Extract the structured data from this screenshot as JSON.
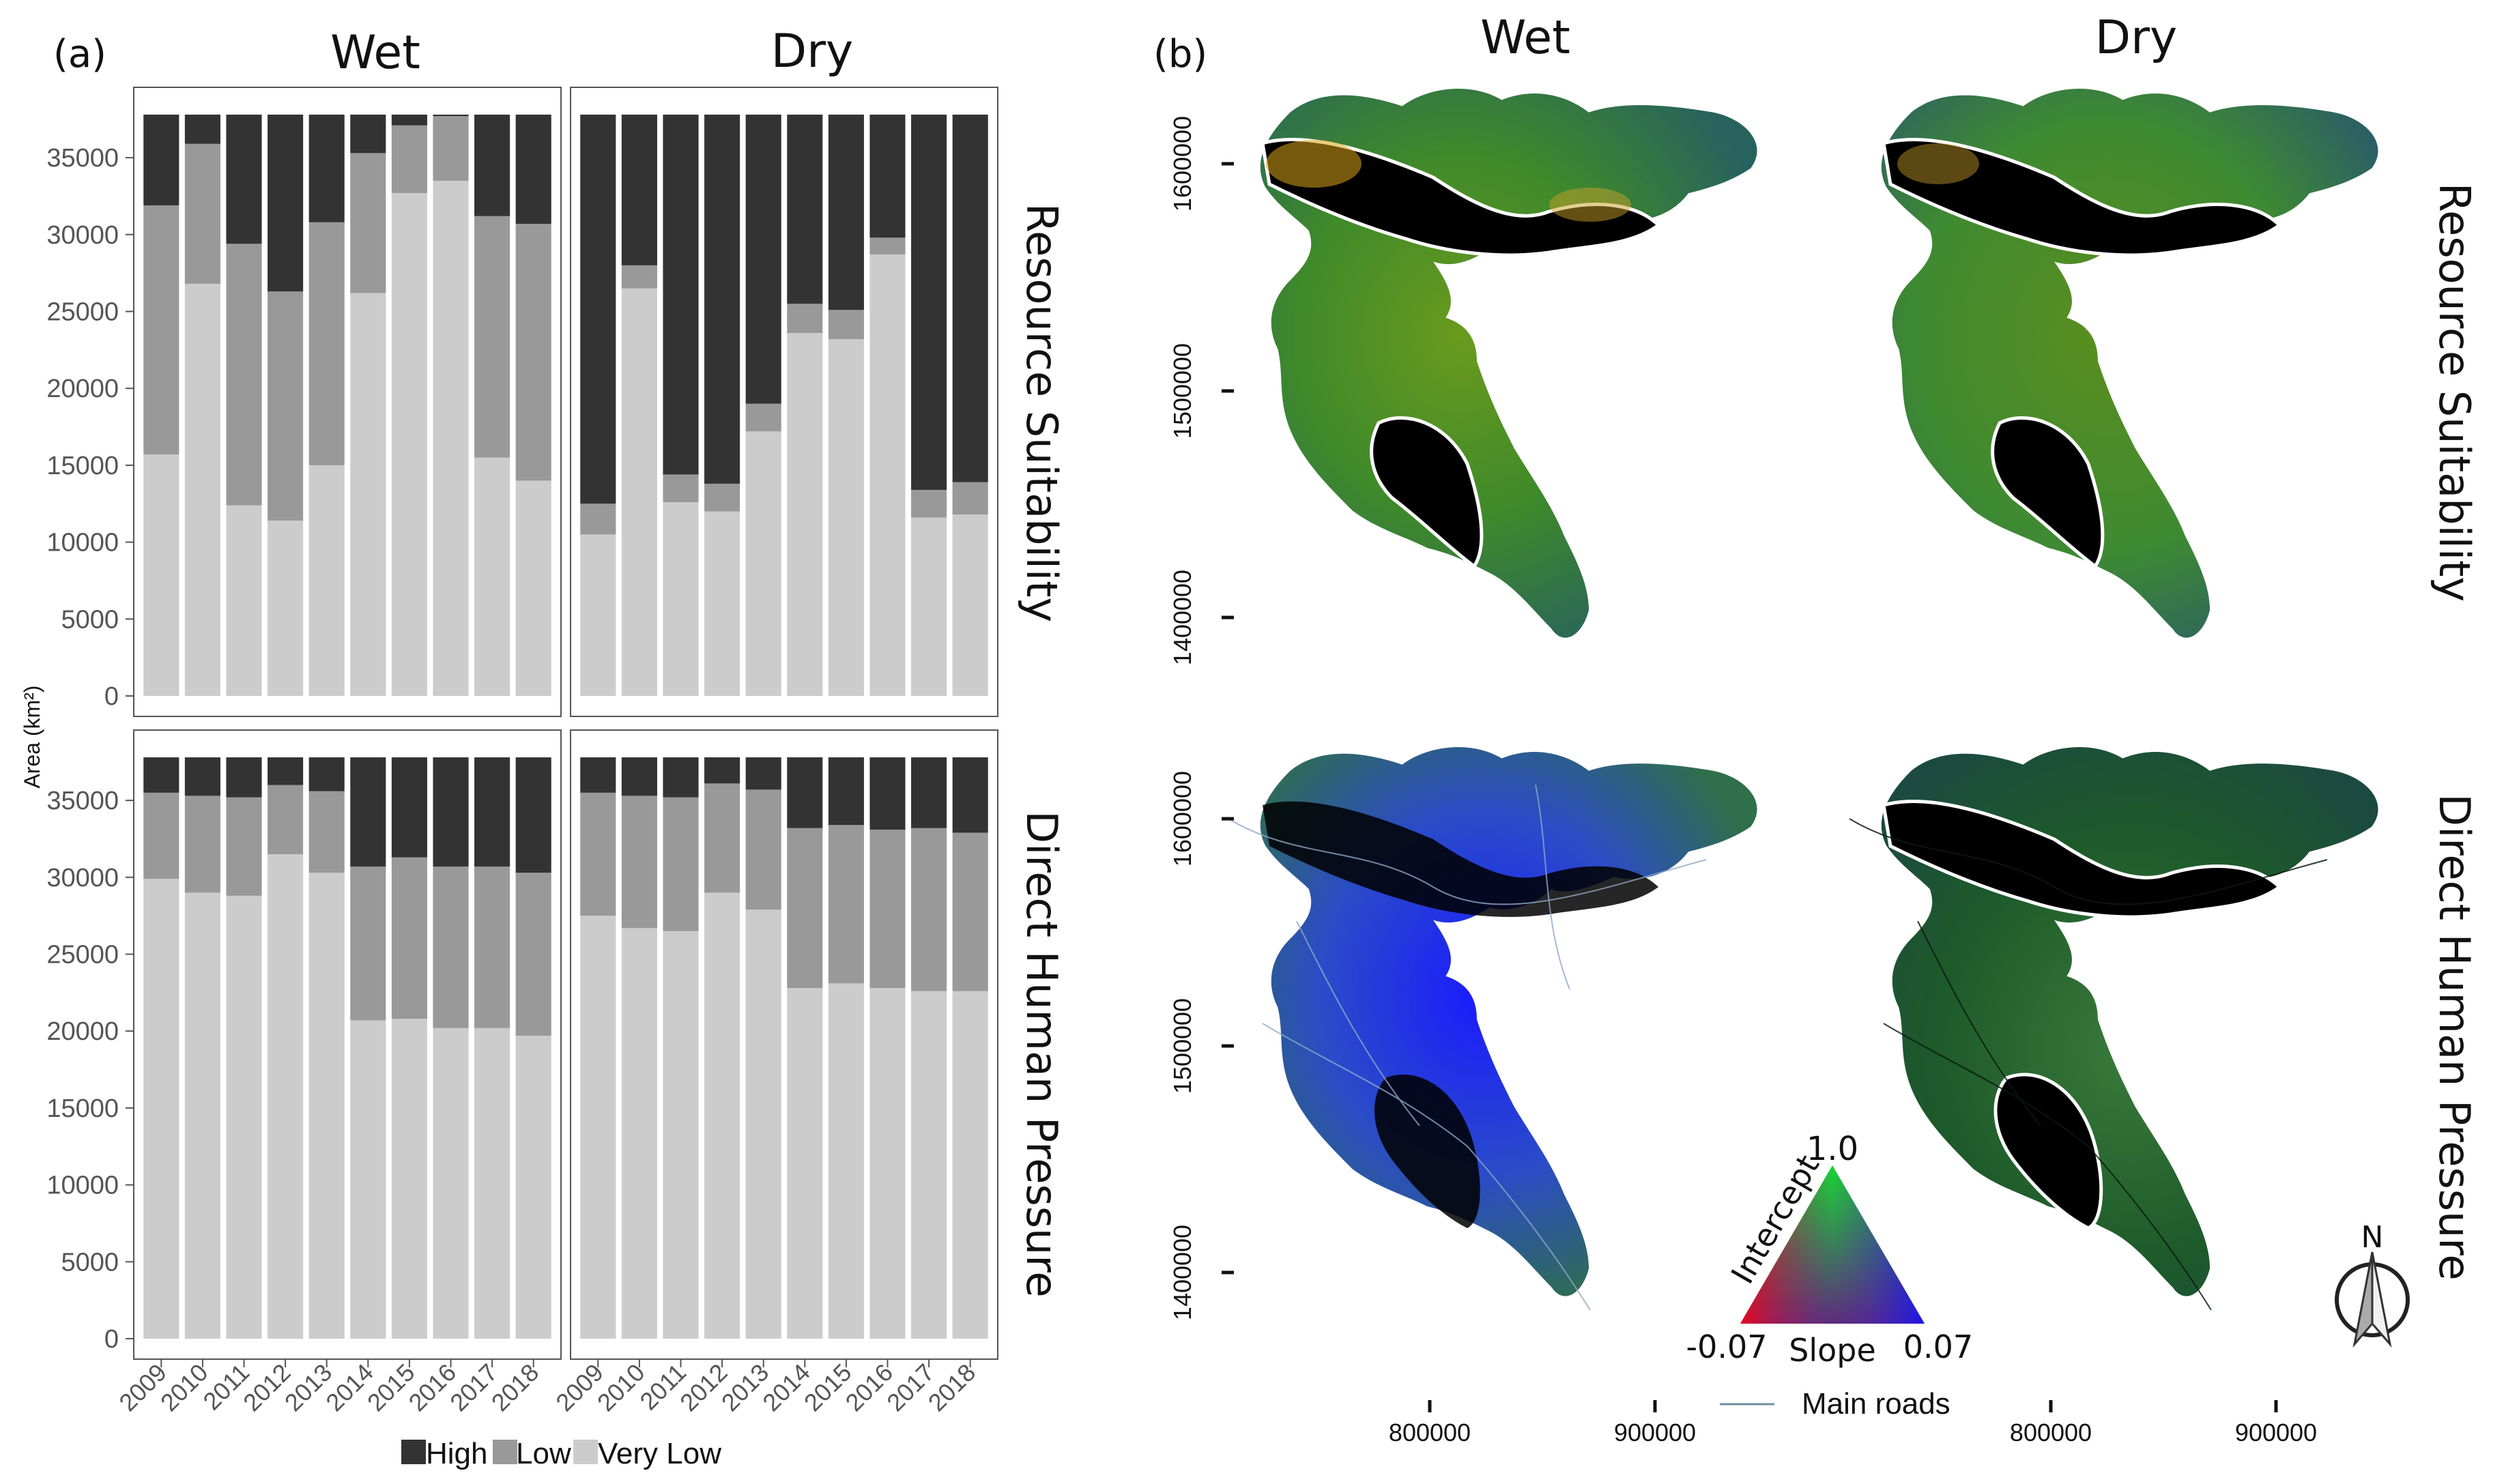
{
  "figure": {
    "panel_a_label": "(a)",
    "panel_b_label": "(b)",
    "col_wet": "Wet",
    "col_dry": "Dry",
    "row_resource": "Resource Suitability",
    "row_pressure": "Direct Human Pressure"
  },
  "chart_data": {
    "type": "bar",
    "stacked": true,
    "ylabel": "Area (km²)",
    "ylim": [
      0,
      37800
    ],
    "yticks": [
      0,
      5000,
      10000,
      15000,
      20000,
      25000,
      30000,
      35000
    ],
    "categories": [
      "2009",
      "2010",
      "2011",
      "2012",
      "2013",
      "2014",
      "2015",
      "2016",
      "2017",
      "2018"
    ],
    "legend": {
      "placement": "bottom",
      "labels": [
        "High",
        "Low",
        "Very Low"
      ],
      "colors": [
        "#333333",
        "#999999",
        "#cccccc"
      ]
    },
    "total": 37800,
    "panels": [
      {
        "row": "Resource Suitability",
        "season": "Wet",
        "very_low": [
          15700,
          26800,
          12400,
          11400,
          15000,
          26200,
          32700,
          33500,
          15500,
          14000
        ],
        "low": [
          16200,
          9100,
          17000,
          14900,
          15800,
          9100,
          4400,
          4200,
          15700,
          16700
        ]
      },
      {
        "row": "Resource Suitability",
        "season": "Dry",
        "very_low": [
          10500,
          26500,
          12600,
          12000,
          17200,
          23600,
          23200,
          28700,
          11600,
          11800
        ],
        "low": [
          2000,
          1500,
          1800,
          1800,
          1800,
          1900,
          1900,
          1100,
          1800,
          2100
        ]
      },
      {
        "row": "Direct Human Pressure",
        "season": "Wet",
        "very_low": [
          29900,
          29000,
          28800,
          31500,
          30300,
          20700,
          20800,
          20200,
          20200,
          19700
        ],
        "low": [
          5600,
          6300,
          6400,
          4500,
          5300,
          10000,
          10500,
          10500,
          10500,
          10600
        ]
      },
      {
        "row": "Direct Human Pressure",
        "season": "Dry",
        "very_low": [
          27500,
          26700,
          26500,
          29000,
          27900,
          22800,
          23100,
          22800,
          22600,
          22600
        ],
        "low": [
          8000,
          8600,
          8700,
          7100,
          7800,
          10400,
          10300,
          10300,
          10600,
          10300
        ]
      }
    ]
  },
  "maps": {
    "y_ticks": [
      "1400000",
      "1500000",
      "1600000"
    ],
    "x_ticks": [
      "800000",
      "900000"
    ],
    "ternary_top": "1.0",
    "ternary_left": "-0.07",
    "ternary_right": "0.07",
    "ternary_axis_left": "Intercept",
    "ternary_axis_bottom": "Slope",
    "roads_label": "Main roads",
    "north_label": "N",
    "colors": {
      "road": "#6f8fa0",
      "outline": "#ffffff",
      "core": "#000000"
    }
  }
}
